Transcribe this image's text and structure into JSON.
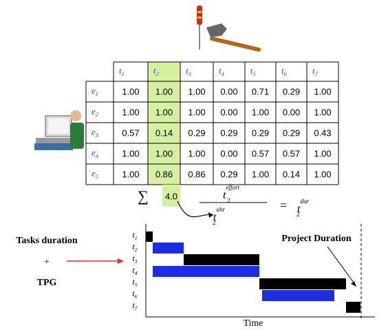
{
  "table": {
    "corner": "",
    "columns": [
      {
        "base": "t",
        "sub": "1"
      },
      {
        "base": "t",
        "sub": "2"
      },
      {
        "base": "t",
        "sub": "3"
      },
      {
        "base": "t",
        "sub": "4"
      },
      {
        "base": "t",
        "sub": "5"
      },
      {
        "base": "t",
        "sub": "6"
      },
      {
        "base": "t",
        "sub": "7"
      }
    ],
    "rows": [
      {
        "label": {
          "base": "e",
          "sub": "1"
        },
        "cells": [
          "1.00",
          "1.00",
          "1.00",
          "0.00",
          "0.71",
          "0.29",
          "1.00"
        ]
      },
      {
        "label": {
          "base": "e",
          "sub": "2"
        },
        "cells": [
          "1.00",
          "1.00",
          "1.00",
          "0.00",
          "1.00",
          "0.00",
          "1.00"
        ]
      },
      {
        "label": {
          "base": "e",
          "sub": "3"
        },
        "cells": [
          "0.57",
          "0.14",
          "0.29",
          "0.29",
          "0.29",
          "0.29",
          "0.43"
        ]
      },
      {
        "label": {
          "base": "e",
          "sub": "4"
        },
        "cells": [
          "1.00",
          "1.00",
          "1.00",
          "0.00",
          "0.57",
          "0.57",
          "1.00"
        ]
      },
      {
        "label": {
          "base": "e",
          "sub": "5"
        },
        "cells": [
          "1.00",
          "0.86",
          "0.86",
          "0.29",
          "1.00",
          "0.14",
          "1.00"
        ]
      }
    ]
  },
  "sum": {
    "symbol": "∑",
    "value": "4.0"
  },
  "formula": {
    "numerator": {
      "base": "t",
      "sub": "2",
      "sup": "effort"
    },
    "denominator": {
      "base": "t",
      "sub": "2",
      "sup": "ahr"
    },
    "equals": "=",
    "result": {
      "base": "t",
      "sub": "2",
      "sup": "dur"
    }
  },
  "gantt": {
    "tasks": [
      {
        "base": "t",
        "sub": "1"
      },
      {
        "base": "t",
        "sub": "2"
      },
      {
        "base": "t",
        "sub": "3"
      },
      {
        "base": "t",
        "sub": "4"
      },
      {
        "base": "t",
        "sub": "5"
      },
      {
        "base": "t",
        "sub": "6"
      },
      {
        "base": "t",
        "sub": "7"
      }
    ],
    "x_label": "Time",
    "annotation": "Project Duration"
  },
  "inputs": {
    "line1": "Tasks duration",
    "plus": "+",
    "line2": "TPG"
  }
}
